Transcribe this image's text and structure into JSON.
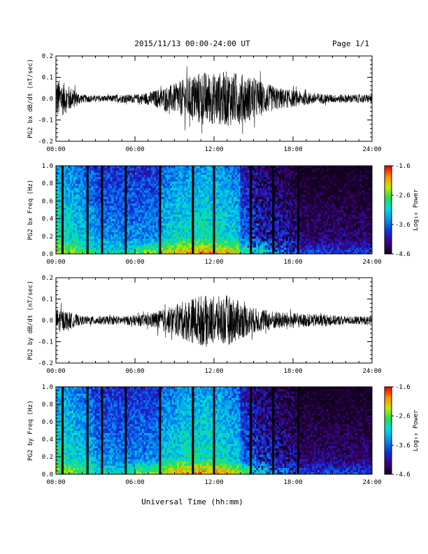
{
  "header": {
    "title": "2015/11/13  00:00-24:00 UT",
    "page": "Page 1/1"
  },
  "xlabel": "Universal Time (hh:mm)",
  "chart_data": [
    {
      "type": "line",
      "title": "",
      "ylabel": "PG2 bx dB/dt (nT/sec)",
      "xlim": [
        0,
        24
      ],
      "ylim": [
        -0.2,
        0.2
      ],
      "xticks": [
        "00:00",
        "06:00",
        "12:00",
        "18:00",
        "24:00"
      ],
      "yticks": [
        "-0.2",
        "-0.1",
        "0.0",
        "0.1",
        "0.2"
      ],
      "envelope": {
        "hours": [
          0,
          1,
          2,
          3,
          4,
          5,
          6,
          7,
          8,
          9,
          10,
          11,
          12,
          13,
          14,
          15,
          16,
          17,
          18,
          19,
          20,
          21,
          22,
          23,
          24
        ],
        "amplitude": [
          0.1,
          0.06,
          0.02,
          0.015,
          0.015,
          0.02,
          0.02,
          0.03,
          0.05,
          0.07,
          0.1,
          0.13,
          0.12,
          0.13,
          0.12,
          0.1,
          0.07,
          0.05,
          0.04,
          0.03,
          0.025,
          0.02,
          0.02,
          0.02,
          0.02
        ]
      }
    },
    {
      "type": "heatmap",
      "title": "",
      "ylabel": "PG2 bx Freq (Hz)",
      "xlim": [
        0,
        24
      ],
      "ylim": [
        0,
        1
      ],
      "xticks": [
        "00:00",
        "06:00",
        "12:00",
        "18:00",
        "24:00"
      ],
      "yticks": [
        "0.0",
        "0.2",
        "0.4",
        "0.6",
        "0.8",
        "1.0"
      ],
      "colorbar": {
        "label": "Log₁₀ Power",
        "range": [
          -4.6,
          -1.6
        ],
        "ticks": [
          "-1.6",
          "-2.6",
          "-3.6",
          "-4.6"
        ]
      },
      "gap_hours": [
        0.5,
        2.4,
        3.5,
        5.3,
        7.9,
        10.4,
        12.0,
        14.8,
        16.5,
        18.4
      ]
    },
    {
      "type": "line",
      "title": "",
      "ylabel": "PG2 by dB/dt (nT/sec)",
      "xlim": [
        0,
        24
      ],
      "ylim": [
        -0.2,
        0.2
      ],
      "xticks": [
        "00:00",
        "06:00",
        "12:00",
        "18:00",
        "24:00"
      ],
      "yticks": [
        "-0.2",
        "-0.1",
        "0.0",
        "0.1",
        "0.2"
      ],
      "envelope": {
        "hours": [
          0,
          1,
          2,
          3,
          4,
          5,
          6,
          7,
          8,
          9,
          10,
          11,
          12,
          13,
          14,
          15,
          16,
          17,
          18,
          19,
          20,
          21,
          22,
          23,
          24
        ],
        "amplitude": [
          0.06,
          0.04,
          0.02,
          0.02,
          0.02,
          0.02,
          0.025,
          0.03,
          0.05,
          0.07,
          0.1,
          0.12,
          0.11,
          0.12,
          0.09,
          0.06,
          0.05,
          0.04,
          0.035,
          0.03,
          0.03,
          0.025,
          0.02,
          0.02,
          0.02
        ]
      }
    },
    {
      "type": "heatmap",
      "title": "",
      "ylabel": "PG2 by Freq (Hz)",
      "xlim": [
        0,
        24
      ],
      "ylim": [
        0,
        1
      ],
      "xticks": [
        "00:00",
        "06:00",
        "12:00",
        "18:00",
        "24:00"
      ],
      "yticks": [
        "0.0",
        "0.2",
        "0.4",
        "0.6",
        "0.8",
        "1.0"
      ],
      "colorbar": {
        "label": "Log₁₀ Power",
        "range": [
          -4.6,
          -1.6
        ],
        "ticks": [
          "-1.6",
          "-2.6",
          "-3.6",
          "-4.6"
        ]
      },
      "gap_hours": [
        0.5,
        2.4,
        3.5,
        5.3,
        7.9,
        10.4,
        12.0,
        14.8,
        16.5,
        18.4
      ]
    }
  ]
}
